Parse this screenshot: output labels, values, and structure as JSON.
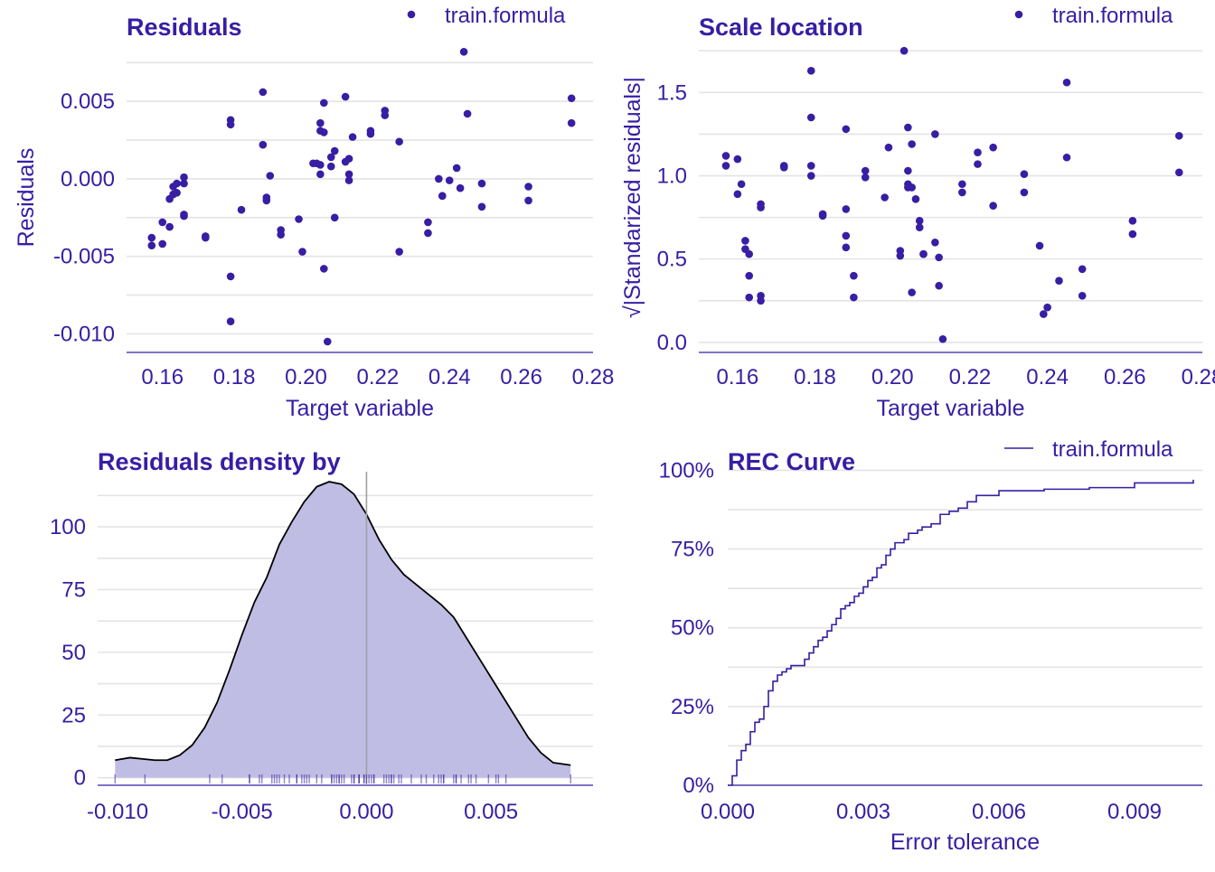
{
  "colors": {
    "primary": "#371ea3",
    "grid": "#e4e4e4",
    "density_fill": "#c0bde4",
    "density_line": "#000000",
    "zero_line": "#a0a0a0"
  },
  "chart_data": [
    {
      "type": "scatter",
      "title": "Residuals",
      "xlabel": "Target variable",
      "ylabel": "Residuals",
      "xlim": [
        0.15,
        0.28
      ],
      "ylim": [
        -0.0112,
        0.0088
      ],
      "x_ticks": [
        "0.16",
        "0.18",
        "0.20",
        "0.22",
        "0.24",
        "0.26",
        "0.28"
      ],
      "y_ticks": [
        "-0.010",
        "-0.005",
        "0.000",
        "0.005"
      ],
      "legend": "top-right",
      "series": [
        {
          "name": "train.formula",
          "x": [
            0.157,
            0.157,
            0.16,
            0.16,
            0.162,
            0.162,
            0.163,
            0.163,
            0.164,
            0.164,
            0.166,
            0.166,
            0.166,
            0.166,
            0.172,
            0.172,
            0.179,
            0.179,
            0.179,
            0.179,
            0.182,
            0.188,
            0.188,
            0.189,
            0.189,
            0.19,
            0.193,
            0.193,
            0.198,
            0.199,
            0.202,
            0.203,
            0.204,
            0.204,
            0.204,
            0.204,
            0.205,
            0.205,
            0.205,
            0.206,
            0.207,
            0.207,
            0.208,
            0.208,
            0.211,
            0.211,
            0.212,
            0.212,
            0.212,
            0.213,
            0.218,
            0.218,
            0.222,
            0.222,
            0.226,
            0.226,
            0.234,
            0.234,
            0.237,
            0.238,
            0.238,
            0.24,
            0.242,
            0.243,
            0.244,
            0.245,
            0.249,
            0.249,
            0.262,
            0.262,
            0.274,
            0.274
          ],
          "y": [
            -0.0038,
            -0.0043,
            -0.0028,
            -0.0042,
            -0.0013,
            -0.0031,
            -0.001,
            -0.0005,
            -0.0009,
            -0.0003,
            0.0001,
            -0.0003,
            -0.0023,
            -0.0024,
            -0.0037,
            -0.0038,
            0.0038,
            0.0035,
            -0.0063,
            -0.0092,
            -0.002,
            0.0056,
            0.0022,
            -0.0012,
            -0.0014,
            0.0002,
            -0.0033,
            -0.0036,
            -0.0026,
            -0.0047,
            0.001,
            0.001,
            0.0036,
            0.0031,
            0.0009,
            0.0003,
            0.003,
            0.0049,
            -0.0058,
            -0.0105,
            0.0014,
            0.0008,
            0.0018,
            -0.0025,
            0.0053,
            0.0011,
            0.0013,
            0.0003,
            -0.0001,
            0.0027,
            0.0029,
            0.0031,
            0.0044,
            0.0041,
            0.0024,
            -0.0047,
            -0.0028,
            -0.0035,
            0.0,
            -0.0011,
            -0.0011,
            -0.0001,
            0.0007,
            -0.0006,
            0.0082,
            0.0042,
            -0.0003,
            -0.0018,
            -0.0005,
            -0.0014,
            0.0052,
            0.0036
          ]
        }
      ]
    },
    {
      "type": "scatter",
      "title": "Scale location",
      "xlabel": "Target variable",
      "ylabel": "√|Standarized residuals|",
      "xlim": [
        0.15,
        0.28
      ],
      "ylim": [
        -0.06,
        1.8
      ],
      "x_ticks": [
        "0.16",
        "0.18",
        "0.20",
        "0.22",
        "0.24",
        "0.26",
        "0.28"
      ],
      "y_ticks": [
        "0.0",
        "0.5",
        "1.0",
        "1.5"
      ],
      "legend": "top-right",
      "series": [
        {
          "name": "train.formula",
          "x": [
            0.157,
            0.157,
            0.16,
            0.16,
            0.161,
            0.162,
            0.162,
            0.163,
            0.163,
            0.163,
            0.166,
            0.166,
            0.166,
            0.166,
            0.172,
            0.172,
            0.179,
            0.179,
            0.179,
            0.179,
            0.182,
            0.182,
            0.188,
            0.188,
            0.188,
            0.188,
            0.19,
            0.19,
            0.193,
            0.193,
            0.198,
            0.199,
            0.202,
            0.202,
            0.203,
            0.204,
            0.204,
            0.204,
            0.204,
            0.205,
            0.205,
            0.205,
            0.206,
            0.207,
            0.207,
            0.208,
            0.208,
            0.211,
            0.211,
            0.212,
            0.212,
            0.213,
            0.218,
            0.218,
            0.222,
            0.222,
            0.226,
            0.226,
            0.234,
            0.234,
            0.238,
            0.239,
            0.24,
            0.243,
            0.245,
            0.245,
            0.249,
            0.249,
            0.262,
            0.262,
            0.274,
            0.274
          ],
          "y": [
            1.12,
            1.06,
            1.1,
            0.89,
            0.95,
            0.61,
            0.56,
            0.53,
            0.4,
            0.27,
            0.83,
            0.81,
            0.28,
            0.25,
            1.06,
            1.05,
            1.63,
            1.35,
            1.06,
            1.0,
            0.77,
            0.76,
            1.28,
            0.8,
            0.64,
            0.57,
            0.4,
            0.27,
            1.03,
            0.99,
            0.87,
            1.17,
            0.55,
            0.52,
            1.75,
            1.29,
            1.03,
            0.95,
            0.93,
            1.19,
            0.93,
            0.3,
            0.86,
            0.73,
            0.69,
            0.53,
            0.53,
            1.25,
            0.6,
            0.51,
            0.34,
            0.02,
            0.95,
            0.9,
            1.14,
            1.07,
            0.82,
            1.17,
            1.01,
            0.9,
            0.58,
            0.17,
            0.21,
            0.37,
            1.56,
            1.11,
            0.44,
            0.28,
            0.73,
            0.65,
            1.24,
            1.02
          ]
        }
      ]
    },
    {
      "type": "area",
      "title": "Residuals density by",
      "xlabel": "",
      "ylabel": "",
      "xlim": [
        -0.0108,
        0.0091
      ],
      "ylim": [
        -3,
        122
      ],
      "x_ticks": [
        "-0.010",
        "-0.005",
        "0.000",
        "0.005"
      ],
      "y_ticks": [
        "0",
        "25",
        "50",
        "75",
        "100"
      ],
      "density": {
        "x": [
          -0.0101,
          -0.0095,
          -0.009,
          -0.0085,
          -0.008,
          -0.0075,
          -0.007,
          -0.0065,
          -0.006,
          -0.0055,
          -0.005,
          -0.0045,
          -0.004,
          -0.0035,
          -0.003,
          -0.0025,
          -0.002,
          -0.0015,
          -0.001,
          -0.0005,
          0.0,
          0.0005,
          0.001,
          0.0015,
          0.002,
          0.0025,
          0.003,
          0.0035,
          0.004,
          0.0045,
          0.005,
          0.0055,
          0.006,
          0.0065,
          0.007,
          0.0075,
          0.0082
        ],
        "y": [
          7,
          8,
          7.5,
          7,
          7,
          9,
          13,
          20,
          30,
          43,
          57,
          70,
          80,
          93,
          102,
          110,
          116,
          118,
          117,
          113,
          105,
          95,
          87,
          81,
          77,
          73,
          69,
          64,
          56,
          48,
          40,
          32,
          24,
          16,
          10,
          6,
          5
        ]
      },
      "rug": [
        -0.0101,
        -0.0089,
        -0.0063,
        -0.0058,
        -0.0047,
        -0.0047,
        -0.0043,
        -0.0042,
        -0.0038,
        -0.0037,
        -0.0036,
        -0.0035,
        -0.0033,
        -0.0031,
        -0.0028,
        -0.0028,
        -0.0026,
        -0.0025,
        -0.0024,
        -0.0023,
        -0.002,
        -0.0018,
        -0.0014,
        -0.0014,
        -0.0013,
        -0.0012,
        -0.0011,
        -0.0011,
        -0.001,
        -0.0009,
        -0.0006,
        -0.0005,
        -0.0005,
        -0.0003,
        -0.0003,
        -0.0003,
        -0.0001,
        -0.0001,
        0.0,
        0.0001,
        0.0002,
        0.0003,
        0.0003,
        0.0007,
        0.0008,
        0.0009,
        0.001,
        0.001,
        0.0011,
        0.0013,
        0.0014,
        0.0018,
        0.0022,
        0.0024,
        0.0027,
        0.0029,
        0.003,
        0.0031,
        0.0031,
        0.0035,
        0.0036,
        0.0036,
        0.0038,
        0.0041,
        0.0042,
        0.0044,
        0.0049,
        0.0052,
        0.0053,
        0.0056,
        0.0082
      ]
    },
    {
      "type": "line",
      "title": "REC Curve",
      "xlabel": "Error tolerance",
      "ylabel": "",
      "xlim": [
        0,
        0.0105
      ],
      "ylim": [
        0,
        1.03
      ],
      "x_ticks": [
        "0.000",
        "0.003",
        "0.006",
        "0.009"
      ],
      "y_ticks": [
        "0%",
        "25%",
        "50%",
        "75%",
        "100%"
      ],
      "legend": "top-right",
      "series": [
        {
          "name": "train.formula",
          "x": [
            0,
            0.0001,
            0.0002,
            0.0003,
            0.0004,
            0.0005,
            0.0006,
            0.0007,
            0.0008,
            0.0009,
            0.001,
            0.0011,
            0.0012,
            0.0013,
            0.0014,
            0.0015,
            0.0017,
            0.0018,
            0.0019,
            0.002,
            0.0021,
            0.0022,
            0.0023,
            0.0024,
            0.0025,
            0.0026,
            0.0027,
            0.0028,
            0.0029,
            0.003,
            0.0031,
            0.0032,
            0.0033,
            0.0034,
            0.0035,
            0.0036,
            0.0037,
            0.0038,
            0.0039,
            0.004,
            0.0042,
            0.0043,
            0.0045,
            0.0047,
            0.0049,
            0.0051,
            0.0053,
            0.0055,
            0.006,
            0.007,
            0.008,
            0.009,
            0.0103
          ],
          "y": [
            0,
            0.03,
            0.08,
            0.11,
            0.13,
            0.17,
            0.2,
            0.21,
            0.25,
            0.3,
            0.33,
            0.35,
            0.36,
            0.37,
            0.38,
            0.38,
            0.4,
            0.42,
            0.44,
            0.46,
            0.47,
            0.49,
            0.51,
            0.53,
            0.56,
            0.57,
            0.58,
            0.6,
            0.61,
            0.63,
            0.65,
            0.66,
            0.69,
            0.7,
            0.73,
            0.75,
            0.77,
            0.77,
            0.78,
            0.8,
            0.81,
            0.82,
            0.83,
            0.86,
            0.87,
            0.88,
            0.9,
            0.92,
            0.935,
            0.94,
            0.945,
            0.96,
            0.97
          ]
        }
      ]
    }
  ]
}
